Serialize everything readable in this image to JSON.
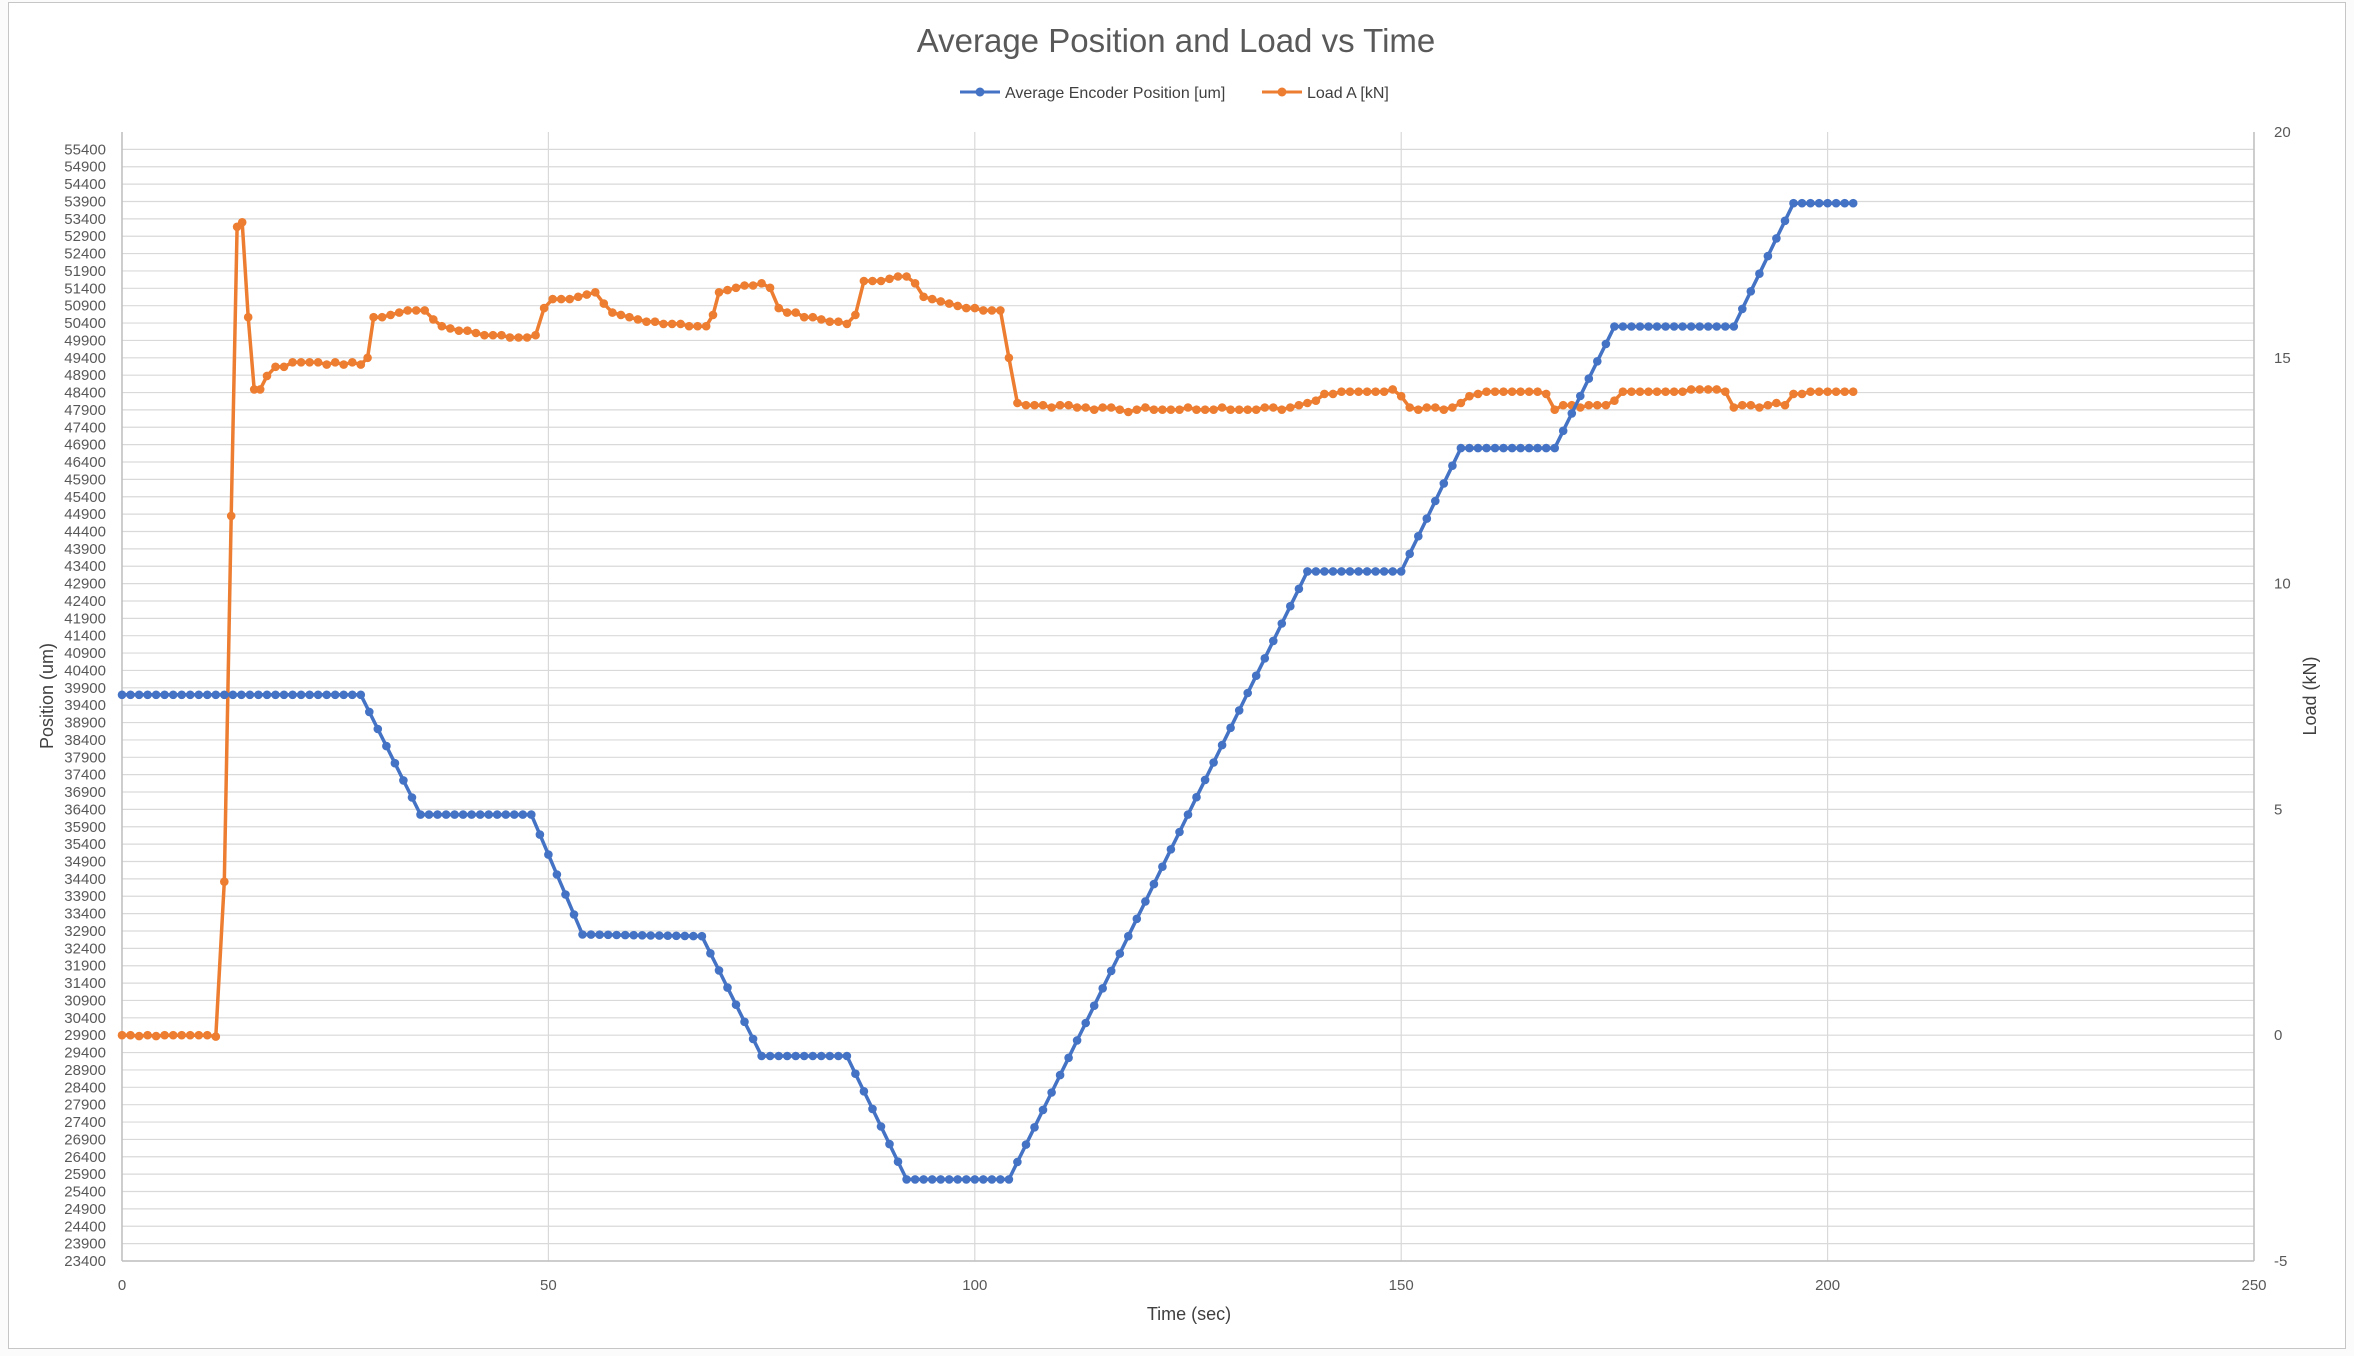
{
  "chart_data": {
    "type": "line",
    "title": "Average Position and Load vs Time",
    "xlabel": "Time (sec)",
    "ylabel": "Position (um)",
    "y2label": "Load (kN)",
    "xlim": [
      0,
      250
    ],
    "x_ticks": [
      0,
      50,
      100,
      150,
      200,
      250
    ],
    "ylim": [
      23400,
      55900
    ],
    "y_ticks": [
      23400,
      23900,
      24400,
      24900,
      25400,
      25900,
      26400,
      26900,
      27400,
      27900,
      28400,
      28900,
      29400,
      29900,
      30400,
      30900,
      31400,
      31900,
      32400,
      32900,
      33400,
      33900,
      34400,
      34900,
      35400,
      35900,
      36400,
      36900,
      37400,
      37900,
      38400,
      38900,
      39400,
      39900,
      40400,
      40900,
      41400,
      41900,
      42400,
      42900,
      43400,
      43900,
      44400,
      44900,
      45400,
      45900,
      46400,
      46900,
      47400,
      47900,
      48400,
      48900,
      49400,
      49900,
      50400,
      50900,
      51400,
      51900,
      52400,
      52900,
      53400,
      53900,
      54400,
      54900,
      55400
    ],
    "y2lim": [
      -5,
      20
    ],
    "y2_ticks": [
      -5,
      0,
      5,
      10,
      15,
      20
    ],
    "grid": true,
    "legend_position": "top",
    "series": [
      {
        "name": "Average Encoder Position [um]",
        "axis": "left",
        "color": "#4472c4",
        "segments": [
          [
            0,
            39700
          ],
          [
            28,
            39700
          ],
          [
            35,
            36250
          ],
          [
            48,
            36250
          ],
          [
            54,
            32800
          ],
          [
            68,
            32750
          ],
          [
            75,
            29300
          ],
          [
            85,
            29300
          ],
          [
            92,
            25750
          ],
          [
            104,
            25750
          ],
          [
            139,
            43250
          ],
          [
            150,
            43250
          ],
          [
            157,
            46800
          ],
          [
            168,
            46800
          ],
          [
            175,
            50300
          ],
          [
            189,
            50300
          ],
          [
            196,
            53850
          ],
          [
            203,
            53850
          ]
        ]
      },
      {
        "name": "Load A [kN]",
        "axis": "right",
        "color": "#ed7d31",
        "points": [
          [
            0,
            0
          ],
          [
            1,
            0
          ],
          [
            2,
            -0.02
          ],
          [
            3,
            0
          ],
          [
            4,
            -0.02
          ],
          [
            5,
            0
          ],
          [
            6,
            0
          ],
          [
            7,
            0
          ],
          [
            8,
            0
          ],
          [
            9,
            0
          ],
          [
            10,
            0
          ],
          [
            11,
            -0.03
          ],
          [
            12,
            3.4
          ],
          [
            12.8,
            11.5
          ],
          [
            13.5,
            17.9
          ],
          [
            14.1,
            18.0
          ],
          [
            14.8,
            15.9
          ],
          [
            15.5,
            14.3
          ],
          [
            16.2,
            14.3
          ],
          [
            17,
            14.6
          ],
          [
            18,
            14.8
          ],
          [
            19,
            14.8
          ],
          [
            20,
            14.9
          ],
          [
            21,
            14.9
          ],
          [
            22,
            14.9
          ],
          [
            23,
            14.9
          ],
          [
            24,
            14.85
          ],
          [
            25,
            14.9
          ],
          [
            26,
            14.85
          ],
          [
            27,
            14.9
          ],
          [
            28,
            14.85
          ],
          [
            28.8,
            15.0
          ],
          [
            29.5,
            15.9
          ],
          [
            30.5,
            15.9
          ],
          [
            31.5,
            15.95
          ],
          [
            32.5,
            16.0
          ],
          [
            33.5,
            16.05
          ],
          [
            34.5,
            16.05
          ],
          [
            35.5,
            16.05
          ],
          [
            36.5,
            15.85
          ],
          [
            37.5,
            15.7
          ],
          [
            38.5,
            15.65
          ],
          [
            39.5,
            15.6
          ],
          [
            40.5,
            15.6
          ],
          [
            41.5,
            15.55
          ],
          [
            42.5,
            15.5
          ],
          [
            43.5,
            15.5
          ],
          [
            44.5,
            15.5
          ],
          [
            45.5,
            15.45
          ],
          [
            46.5,
            15.45
          ],
          [
            47.5,
            15.45
          ],
          [
            48.5,
            15.5
          ],
          [
            49.5,
            16.1
          ],
          [
            50.5,
            16.3
          ],
          [
            51.5,
            16.3
          ],
          [
            52.5,
            16.3
          ],
          [
            53.5,
            16.35
          ],
          [
            54.5,
            16.4
          ],
          [
            55.5,
            16.45
          ],
          [
            56.5,
            16.2
          ],
          [
            57.5,
            16.0
          ],
          [
            58.5,
            15.95
          ],
          [
            59.5,
            15.9
          ],
          [
            60.5,
            15.85
          ],
          [
            61.5,
            15.8
          ],
          [
            62.5,
            15.8
          ],
          [
            63.5,
            15.75
          ],
          [
            64.5,
            15.75
          ],
          [
            65.5,
            15.75
          ],
          [
            66.5,
            15.7
          ],
          [
            67.5,
            15.7
          ],
          [
            68.5,
            15.7
          ],
          [
            69.3,
            15.95
          ],
          [
            70,
            16.45
          ],
          [
            71,
            16.5
          ],
          [
            72,
            16.55
          ],
          [
            73,
            16.6
          ],
          [
            74,
            16.6
          ],
          [
            75,
            16.65
          ],
          [
            76,
            16.55
          ],
          [
            77,
            16.1
          ],
          [
            78,
            16.0
          ],
          [
            79,
            16.0
          ],
          [
            80,
            15.9
          ],
          [
            81,
            15.9
          ],
          [
            82,
            15.85
          ],
          [
            83,
            15.8
          ],
          [
            84,
            15.8
          ],
          [
            85,
            15.75
          ],
          [
            86,
            15.95
          ],
          [
            87,
            16.7
          ],
          [
            88,
            16.7
          ],
          [
            89,
            16.7
          ],
          [
            90,
            16.75
          ],
          [
            91,
            16.8
          ],
          [
            92,
            16.8
          ],
          [
            93,
            16.65
          ],
          [
            94,
            16.35
          ],
          [
            95,
            16.3
          ],
          [
            96,
            16.25
          ],
          [
            97,
            16.2
          ],
          [
            98,
            16.15
          ],
          [
            99,
            16.1
          ],
          [
            100,
            16.1
          ],
          [
            101,
            16.05
          ],
          [
            102,
            16.05
          ],
          [
            103,
            16.05
          ],
          [
            104,
            15.0
          ],
          [
            105,
            14.0
          ],
          [
            106,
            13.95
          ],
          [
            107,
            13.95
          ],
          [
            108,
            13.95
          ],
          [
            109,
            13.9
          ],
          [
            110,
            13.95
          ],
          [
            111,
            13.95
          ],
          [
            112,
            13.9
          ],
          [
            113,
            13.9
          ],
          [
            114,
            13.85
          ],
          [
            115,
            13.9
          ],
          [
            116,
            13.9
          ],
          [
            117,
            13.85
          ],
          [
            118,
            13.8
          ],
          [
            119,
            13.85
          ],
          [
            120,
            13.9
          ],
          [
            121,
            13.85
          ],
          [
            122,
            13.85
          ],
          [
            123,
            13.85
          ],
          [
            124,
            13.85
          ],
          [
            125,
            13.9
          ],
          [
            126,
            13.85
          ],
          [
            127,
            13.85
          ],
          [
            128,
            13.85
          ],
          [
            129,
            13.9
          ],
          [
            130,
            13.85
          ],
          [
            131,
            13.85
          ],
          [
            132,
            13.85
          ],
          [
            133,
            13.85
          ],
          [
            134,
            13.9
          ],
          [
            135,
            13.9
          ],
          [
            136,
            13.85
          ],
          [
            137,
            13.9
          ],
          [
            138,
            13.95
          ],
          [
            139,
            14.0
          ],
          [
            140,
            14.05
          ],
          [
            141,
            14.2
          ],
          [
            142,
            14.2
          ],
          [
            143,
            14.25
          ],
          [
            144,
            14.25
          ],
          [
            145,
            14.25
          ],
          [
            146,
            14.25
          ],
          [
            147,
            14.25
          ],
          [
            148,
            14.25
          ],
          [
            149,
            14.3
          ],
          [
            150,
            14.15
          ],
          [
            151,
            13.9
          ],
          [
            152,
            13.85
          ],
          [
            153,
            13.9
          ],
          [
            154,
            13.9
          ],
          [
            155,
            13.85
          ],
          [
            156,
            13.9
          ],
          [
            157,
            14.0
          ],
          [
            158,
            14.15
          ],
          [
            159,
            14.2
          ],
          [
            160,
            14.25
          ],
          [
            161,
            14.25
          ],
          [
            162,
            14.25
          ],
          [
            163,
            14.25
          ],
          [
            164,
            14.25
          ],
          [
            165,
            14.25
          ],
          [
            166,
            14.25
          ],
          [
            167,
            14.2
          ],
          [
            168,
            13.85
          ],
          [
            169,
            13.95
          ],
          [
            170,
            13.95
          ],
          [
            171,
            13.9
          ],
          [
            172,
            13.95
          ],
          [
            173,
            13.95
          ],
          [
            174,
            13.95
          ],
          [
            175,
            14.05
          ],
          [
            176,
            14.25
          ],
          [
            177,
            14.25
          ],
          [
            178,
            14.25
          ],
          [
            179,
            14.25
          ],
          [
            180,
            14.25
          ],
          [
            181,
            14.25
          ],
          [
            182,
            14.25
          ],
          [
            183,
            14.25
          ],
          [
            184,
            14.3
          ],
          [
            185,
            14.3
          ],
          [
            186,
            14.3
          ],
          [
            187,
            14.3
          ],
          [
            188,
            14.25
          ],
          [
            189,
            13.9
          ],
          [
            190,
            13.95
          ],
          [
            191,
            13.95
          ],
          [
            192,
            13.9
          ],
          [
            193,
            13.95
          ],
          [
            194,
            14.0
          ],
          [
            195,
            13.95
          ],
          [
            196,
            14.2
          ],
          [
            197,
            14.2
          ],
          [
            198,
            14.25
          ],
          [
            199,
            14.25
          ],
          [
            200,
            14.25
          ],
          [
            201,
            14.25
          ],
          [
            202,
            14.25
          ],
          [
            203,
            14.25
          ]
        ]
      }
    ]
  }
}
